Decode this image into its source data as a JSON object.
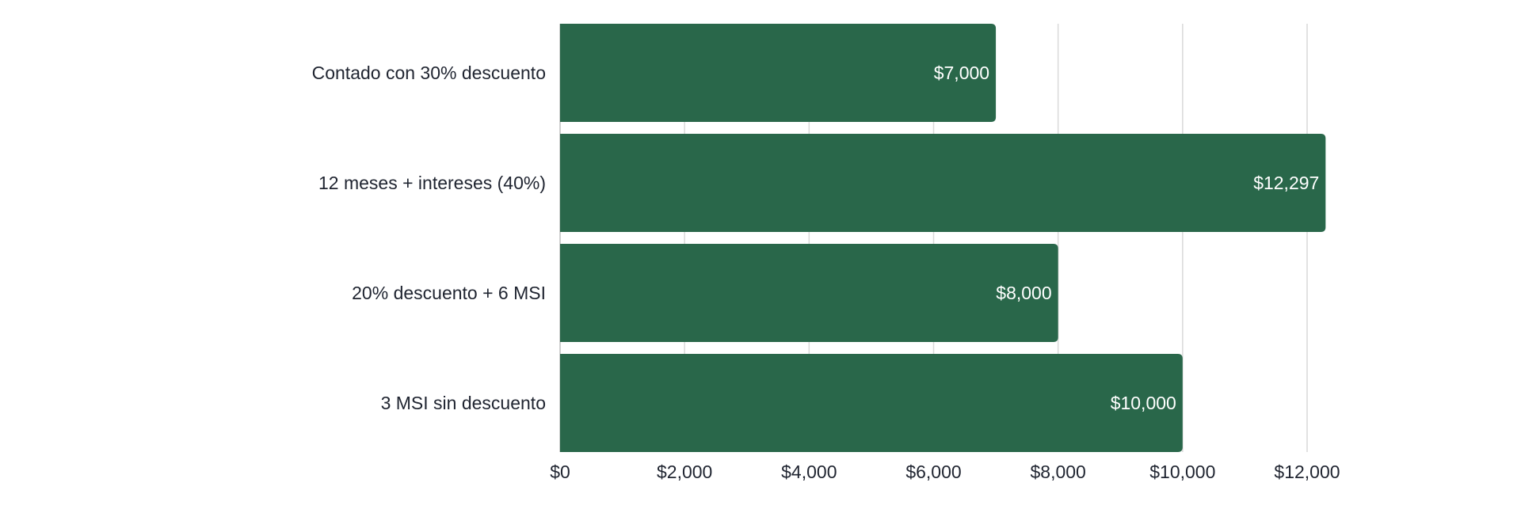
{
  "chart_data": {
    "type": "bar",
    "orientation": "horizontal",
    "title": "",
    "xlabel": "",
    "ylabel": "",
    "categories": [
      "Contado con 30% descuento",
      "12 meses + intereses (40%)",
      "20% descuento + 6 MSI",
      "3 MSI sin descuento"
    ],
    "values": [
      7000,
      12297,
      8000,
      10000
    ],
    "data_labels": [
      "$7,000",
      "$12,297",
      "$8,000",
      "$10,000"
    ],
    "xlim": [
      0,
      12000
    ],
    "ticks": [
      0,
      2000,
      4000,
      6000,
      8000,
      10000,
      12000
    ],
    "tick_labels": [
      "$0",
      "$2,000",
      "$4,000",
      "$6,000",
      "$8,000",
      "$10,000",
      "$12,000"
    ],
    "grid": "vertical",
    "legend": "none",
    "bar_color": "#29674a"
  }
}
